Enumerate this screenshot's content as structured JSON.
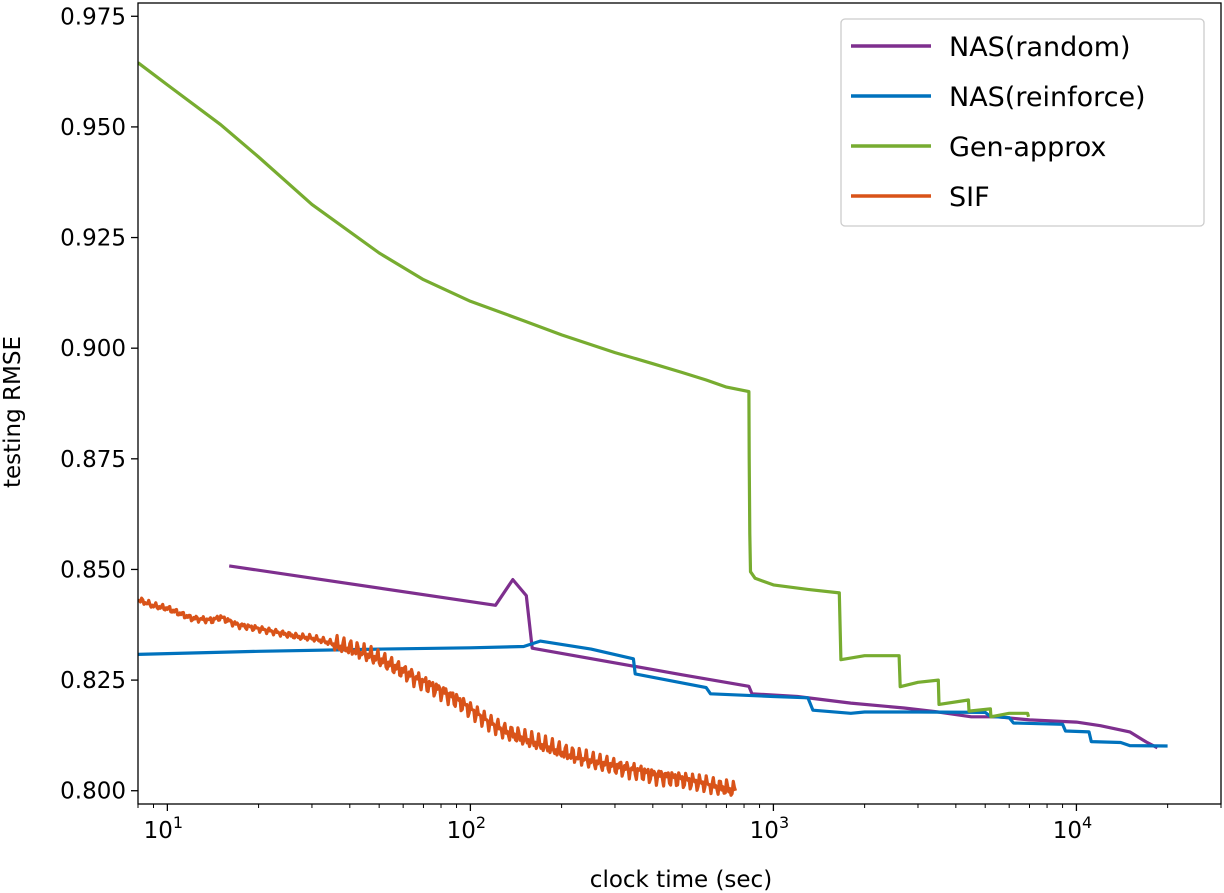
{
  "chart_data": {
    "type": "line",
    "title": "",
    "xlabel": "clock time (sec)",
    "ylabel": "testing RMSE",
    "xscale": "log",
    "xlim": [
      8,
      30000
    ],
    "ylim": [
      0.797,
      0.978
    ],
    "grid": false,
    "legend_position": "top-right",
    "x_tick_labels": [
      {
        "value": 10,
        "base": "10",
        "exp": "1"
      },
      {
        "value": 100,
        "base": "10",
        "exp": "2"
      },
      {
        "value": 1000,
        "base": "10",
        "exp": "3"
      },
      {
        "value": 10000,
        "base": "10",
        "exp": "4"
      }
    ],
    "y_ticks": [
      0.8,
      0.825,
      0.85,
      0.875,
      0.9,
      0.925,
      0.95,
      0.975
    ],
    "y_tick_labels": [
      "0.800",
      "0.825",
      "0.850",
      "0.875",
      "0.900",
      "0.925",
      "0.950",
      "0.975"
    ],
    "series": [
      {
        "name": "NAS(random)",
        "color": "#7e2f8e",
        "points": [
          [
            16,
            0.8508
          ],
          [
            121,
            0.8419
          ],
          [
            138,
            0.8477
          ],
          [
            153,
            0.8441
          ],
          [
            160,
            0.8322
          ],
          [
            500,
            0.8262
          ],
          [
            830,
            0.8236
          ],
          [
            850,
            0.8219
          ],
          [
            1200,
            0.8213
          ],
          [
            1800,
            0.8198
          ],
          [
            2700,
            0.8187
          ],
          [
            3500,
            0.8178
          ],
          [
            4500,
            0.8167
          ],
          [
            5500,
            0.8167
          ],
          [
            7000,
            0.816
          ],
          [
            10000,
            0.8155
          ],
          [
            12000,
            0.8147
          ],
          [
            15000,
            0.8133
          ],
          [
            17000,
            0.811
          ],
          [
            18500,
            0.8097
          ]
        ]
      },
      {
        "name": "NAS(reinforce)",
        "color": "#0072bd",
        "points": [
          [
            8,
            0.8308
          ],
          [
            20,
            0.8315
          ],
          [
            50,
            0.832
          ],
          [
            100,
            0.8323
          ],
          [
            150,
            0.8326
          ],
          [
            170,
            0.8338
          ],
          [
            250,
            0.832
          ],
          [
            345,
            0.8298
          ],
          [
            350,
            0.8264
          ],
          [
            600,
            0.8233
          ],
          [
            620,
            0.8219
          ],
          [
            1000,
            0.8213
          ],
          [
            1300,
            0.821
          ],
          [
            1350,
            0.8182
          ],
          [
            1800,
            0.8175
          ],
          [
            2000,
            0.8178
          ],
          [
            3000,
            0.8178
          ],
          [
            5000,
            0.8177
          ],
          [
            5200,
            0.8168
          ],
          [
            6000,
            0.8165
          ],
          [
            6200,
            0.8153
          ],
          [
            9000,
            0.815
          ],
          [
            9200,
            0.8135
          ],
          [
            11000,
            0.8133
          ],
          [
            11200,
            0.8111
          ],
          [
            14000,
            0.8109
          ],
          [
            15000,
            0.8102
          ],
          [
            20000,
            0.8101
          ]
        ]
      },
      {
        "name": "Gen-approx",
        "color": "#77ac30",
        "points": [
          [
            8,
            0.9645
          ],
          [
            10,
            0.9595
          ],
          [
            15,
            0.9505
          ],
          [
            20,
            0.9432
          ],
          [
            30,
            0.9325
          ],
          [
            50,
            0.9215
          ],
          [
            70,
            0.9155
          ],
          [
            100,
            0.9106
          ],
          [
            150,
            0.9062
          ],
          [
            200,
            0.903
          ],
          [
            300,
            0.899
          ],
          [
            400,
            0.8965
          ],
          [
            500,
            0.8945
          ],
          [
            600,
            0.8928
          ],
          [
            700,
            0.8912
          ],
          [
            830,
            0.8902
          ],
          [
            832,
            0.875
          ],
          [
            836,
            0.858
          ],
          [
            840,
            0.8495
          ],
          [
            870,
            0.848
          ],
          [
            1000,
            0.8465
          ],
          [
            1300,
            0.8455
          ],
          [
            1650,
            0.8447
          ],
          [
            1670,
            0.8296
          ],
          [
            2000,
            0.8305
          ],
          [
            2600,
            0.8305
          ],
          [
            2620,
            0.8235
          ],
          [
            3000,
            0.8245
          ],
          [
            3500,
            0.825
          ],
          [
            3520,
            0.8195
          ],
          [
            4400,
            0.8205
          ],
          [
            4420,
            0.818
          ],
          [
            5200,
            0.8185
          ],
          [
            5220,
            0.8167
          ],
          [
            6000,
            0.8175
          ],
          [
            6900,
            0.8175
          ],
          [
            6950,
            0.8167
          ]
        ]
      },
      {
        "name": "SIF",
        "color": "#d95319",
        "points": [
          [
            8,
            0.8432
          ],
          [
            9,
            0.8418
          ],
          [
            10,
            0.8412
          ],
          [
            12,
            0.839
          ],
          [
            14,
            0.8385
          ],
          [
            15,
            0.8392
          ],
          [
            17,
            0.8375
          ],
          [
            20,
            0.8366
          ],
          [
            23,
            0.8358
          ],
          [
            27,
            0.8348
          ],
          [
            30,
            0.8345
          ],
          [
            33,
            0.8338
          ],
          [
            36,
            0.833
          ],
          [
            40,
            0.8322
          ],
          [
            45,
            0.831
          ],
          [
            50,
            0.8298
          ],
          [
            60,
            0.827
          ],
          [
            70,
            0.8244
          ],
          [
            80,
            0.8225
          ],
          [
            90,
            0.8205
          ],
          [
            100,
            0.8183
          ],
          [
            115,
            0.8155
          ],
          [
            130,
            0.8135
          ],
          [
            150,
            0.8118
          ],
          [
            180,
            0.81
          ],
          [
            200,
            0.8088
          ],
          [
            250,
            0.8068
          ],
          [
            300,
            0.8055
          ],
          [
            350,
            0.8045
          ],
          [
            400,
            0.8035
          ],
          [
            450,
            0.803
          ],
          [
            500,
            0.8025
          ],
          [
            600,
            0.8015
          ],
          [
            700,
            0.8005
          ],
          [
            750,
            0.8
          ]
        ]
      }
    ]
  }
}
